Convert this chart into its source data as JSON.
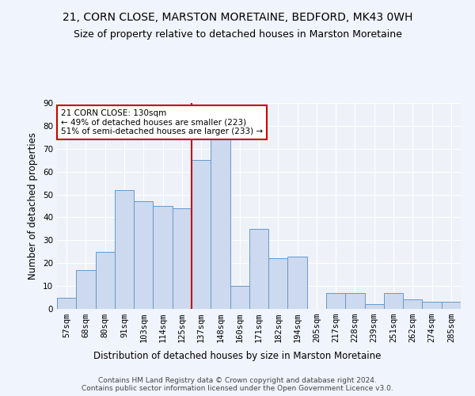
{
  "title1": "21, CORN CLOSE, MARSTON MORETAINE, BEDFORD, MK43 0WH",
  "title2": "Size of property relative to detached houses in Marston Moretaine",
  "xlabel": "Distribution of detached houses by size in Marston Moretaine",
  "ylabel": "Number of detached properties",
  "footer1": "Contains HM Land Registry data © Crown copyright and database right 2024.",
  "footer2": "Contains public sector information licensed under the Open Government Licence v3.0.",
  "bins": [
    "57sqm",
    "68sqm",
    "80sqm",
    "91sqm",
    "103sqm",
    "114sqm",
    "125sqm",
    "137sqm",
    "148sqm",
    "160sqm",
    "171sqm",
    "182sqm",
    "194sqm",
    "205sqm",
    "217sqm",
    "228sqm",
    "239sqm",
    "251sqm",
    "262sqm",
    "274sqm",
    "285sqm"
  ],
  "values": [
    5,
    17,
    25,
    52,
    47,
    45,
    44,
    65,
    75,
    10,
    35,
    22,
    23,
    0,
    7,
    7,
    2,
    7,
    4,
    3,
    3
  ],
  "bar_color": "#ccd9ee",
  "bar_edge_color": "#6699cc",
  "vline_color": "#cc0000",
  "vline_x_index": 7,
  "annotation_text": "21 CORN CLOSE: 130sqm\n← 49% of detached houses are smaller (223)\n51% of semi-detached houses are larger (233) →",
  "annotation_box_color": "#ffffff",
  "annotation_box_edge": "#cc0000",
  "ylim": [
    0,
    90
  ],
  "yticks": [
    0,
    10,
    20,
    30,
    40,
    50,
    60,
    70,
    80,
    90
  ],
  "bg_color": "#eef2f8",
  "grid_color": "#ffffff",
  "title_fontsize": 10,
  "subtitle_fontsize": 9,
  "axis_label_fontsize": 8.5,
  "tick_fontsize": 7.5,
  "annotation_fontsize": 7.5,
  "footer_fontsize": 6.5
}
